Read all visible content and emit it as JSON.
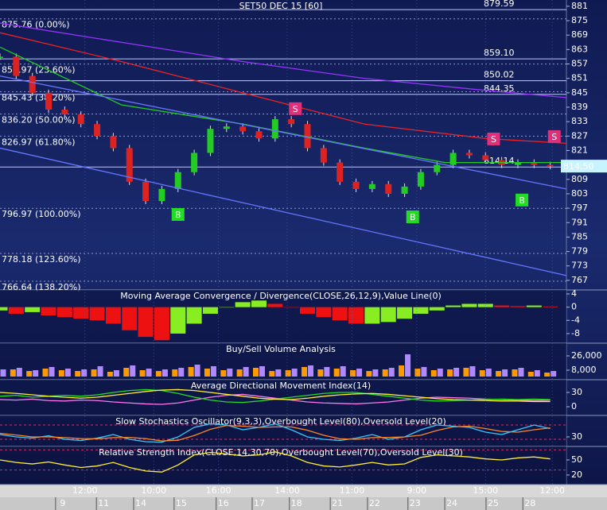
{
  "chart_data": [
    {
      "type": "line",
      "title": "SET50 DEC 15 [60]",
      "xlim": [
        0,
        140
      ],
      "ylim": [
        763,
        883.6
      ],
      "yticks": [
        881,
        875,
        869,
        863,
        857,
        851,
        845,
        839,
        833,
        827,
        821,
        815,
        809,
        803,
        797,
        791,
        785,
        779,
        773,
        767
      ],
      "series": [
        {
          "style": "candle",
          "color": "#22cc22",
          "down_color": "#dd2222",
          "x": [
            0,
            4,
            8,
            12,
            16,
            20,
            24,
            28,
            32,
            36,
            40,
            44,
            48,
            52,
            56,
            60,
            64,
            68,
            72,
            76,
            80,
            84,
            88,
            92,
            96,
            100,
            104,
            108,
            112,
            116,
            120,
            124,
            128,
            132,
            136
          ],
          "values": [
            860,
            852,
            845,
            838,
            836,
            832,
            827,
            822,
            808,
            800,
            805,
            812,
            820,
            830,
            831,
            829,
            826,
            834,
            832,
            822,
            816,
            808,
            805,
            807,
            803,
            806,
            812,
            815,
            820,
            819,
            817,
            815,
            816,
            815,
            814.5
          ]
        },
        {
          "style": "line",
          "color": "#9933ff",
          "x": [
            0,
            30,
            60,
            90,
            120,
            140
          ],
          "values": [
            874,
            866,
            858,
            851,
            846,
            843
          ]
        },
        {
          "style": "line",
          "color": "#ee2222",
          "x": [
            0,
            30,
            60,
            90,
            120,
            140
          ],
          "values": [
            870,
            858,
            845,
            832,
            826,
            824
          ]
        },
        {
          "style": "line",
          "color": "#22cc22",
          "x": [
            0,
            30,
            60,
            90,
            110,
            140
          ],
          "values": [
            864,
            840,
            832,
            822,
            816,
            816
          ]
        },
        {
          "style": "line",
          "color": "#6677ff",
          "x": [
            0,
            140
          ],
          "values": [
            852,
            805
          ]
        },
        {
          "style": "line",
          "color": "#6677ff",
          "x": [
            0,
            140
          ],
          "values": [
            822,
            769
          ]
        }
      ],
      "fib_levels": [
        {
          "value": 875.76,
          "label": "875.76 (0.00%)"
        },
        {
          "value": 856.97,
          "label": "856.97 (23.60%)"
        },
        {
          "value": 845.43,
          "label": "845.43 (38.20%)"
        },
        {
          "value": 836.2,
          "label": "836.20 (50.00%)"
        },
        {
          "value": 826.97,
          "label": "826.97 (61.80%)"
        },
        {
          "value": 796.97,
          "label": "796.97 (100.00%)"
        },
        {
          "value": 778.18,
          "label": "778.18 (123.60%)"
        },
        {
          "value": 766.64,
          "label": "766.64 (138.20%)"
        }
      ],
      "price_levels": [
        879.59,
        {
          "value": 859.1,
          "label": "859.10"
        },
        850.02,
        844.35,
        814.14
      ],
      "last": {
        "value": 814.5,
        "label": "814.50"
      },
      "signals": [
        {
          "label": "S",
          "x": 73,
          "value": 838.4
        },
        {
          "label": "S",
          "x": 122,
          "value": 825.8
        },
        {
          "label": "S",
          "x": 137,
          "value": 826.8
        },
        {
          "label": "B",
          "x": 44,
          "value": 794.4
        },
        {
          "label": "B",
          "x": 102,
          "value": 793.4
        },
        {
          "label": "B",
          "x": 129,
          "value": 800.4
        }
      ]
    },
    {
      "type": "bar",
      "title": "Moving Average Convergence / Divergence(CLOSE,26,12,9),Value Line(0)",
      "xlim": [
        0,
        140
      ],
      "ylim": [
        -10.9,
        5.2
      ],
      "yticks": [
        4,
        0,
        -4,
        -8
      ],
      "x": [
        0,
        4,
        8,
        12,
        16,
        20,
        24,
        28,
        32,
        36,
        40,
        44,
        48,
        52,
        56,
        60,
        64,
        68,
        72,
        76,
        80,
        84,
        88,
        92,
        96,
        100,
        104,
        108,
        112,
        116,
        120,
        124,
        128,
        132,
        136
      ],
      "series": [
        {
          "style": "bar",
          "color": "#88ee22",
          "down_color": "#ee1111",
          "values": [
            -1,
            -2,
            -1.5,
            -2.5,
            -3,
            -3.5,
            -4,
            -5,
            -7,
            -9,
            -10,
            -8,
            -5,
            -2,
            0,
            1.5,
            2,
            1,
            0,
            -2,
            -3,
            -4,
            -5,
            -5,
            -4.5,
            -3.5,
            -2,
            -1,
            0.5,
            1,
            1,
            0.5,
            0.3,
            0.5,
            0.2
          ]
        }
      ]
    },
    {
      "type": "bar",
      "title": "Buy/Sell Volume Analysis",
      "xlim": [
        0,
        140
      ],
      "ylim": [
        -4000,
        42000
      ],
      "yticks": [
        {
          "value": 26000,
          "label": "26,000"
        },
        {
          "value": 8000,
          "label": "8,000"
        }
      ],
      "x": [
        0,
        4,
        8,
        12,
        16,
        20,
        24,
        28,
        32,
        36,
        40,
        44,
        48,
        52,
        56,
        60,
        64,
        68,
        72,
        76,
        80,
        84,
        88,
        92,
        96,
        100,
        104,
        108,
        112,
        116,
        120,
        124,
        128,
        132,
        136
      ],
      "series": [
        {
          "style": "bar",
          "color": "#ff9900",
          "values": [
            6000,
            9000,
            7000,
            10000,
            8000,
            7000,
            9000,
            6000,
            11000,
            8000,
            7000,
            9000,
            12000,
            10000,
            8000,
            9000,
            11000,
            7000,
            8000,
            12000,
            9000,
            10000,
            8000,
            7000,
            9000,
            14000,
            10000,
            8000,
            9000,
            11000,
            8000,
            7000,
            9000,
            6000,
            5000
          ]
        },
        {
          "style": "bar",
          "color": "#b088ff",
          "values": [
            9000,
            11000,
            8000,
            12000,
            10000,
            9000,
            13000,
            8000,
            14000,
            10000,
            9000,
            11000,
            15000,
            13000,
            10000,
            12000,
            13000,
            9000,
            10000,
            14000,
            12000,
            13000,
            10000,
            9000,
            11000,
            28000,
            12000,
            10000,
            11000,
            13000,
            10000,
            9000,
            11000,
            8000,
            7000
          ]
        }
      ]
    },
    {
      "type": "line",
      "title": "Average Directional Movement Index(14)",
      "xlim": [
        0,
        140
      ],
      "ylim": [
        -18.3,
        56.7
      ],
      "yticks": [
        30,
        0
      ],
      "x": [
        0,
        4,
        8,
        12,
        16,
        20,
        24,
        28,
        32,
        36,
        40,
        44,
        48,
        52,
        56,
        60,
        64,
        68,
        72,
        76,
        80,
        84,
        88,
        92,
        96,
        100,
        104,
        108,
        112,
        116,
        120,
        124,
        128,
        132,
        136
      ],
      "series": [
        {
          "style": "line",
          "color": "#ff77ee",
          "values": [
            15,
            14,
            16,
            13,
            12,
            14,
            13,
            10,
            8,
            6,
            5,
            8,
            14,
            20,
            24,
            26,
            22,
            18,
            14,
            10,
            8,
            7,
            6,
            8,
            10,
            14,
            18,
            20,
            19,
            18,
            16,
            15,
            14,
            13,
            14
          ]
        },
        {
          "style": "line",
          "color": "#22dd22",
          "values": [
            22,
            24,
            20,
            22,
            24,
            22,
            25,
            30,
            34,
            36,
            34,
            28,
            20,
            14,
            10,
            9,
            12,
            16,
            20,
            24,
            28,
            30,
            30,
            26,
            22,
            18,
            14,
            12,
            13,
            14,
            15,
            16,
            15,
            16,
            15
          ]
        },
        {
          "style": "line",
          "color": "#ffee33",
          "values": [
            30,
            28,
            25,
            22,
            20,
            18,
            20,
            24,
            28,
            32,
            35,
            36,
            34,
            30,
            26,
            22,
            18,
            16,
            15,
            18,
            22,
            25,
            27,
            28,
            26,
            23,
            20,
            17,
            15,
            14,
            13,
            12,
            12,
            11,
            11
          ]
        }
      ]
    },
    {
      "type": "line",
      "title": "Slow Stochastics Oscillator(9,3,3),Overbought Level(80),Oversold Level(20)",
      "xlim": [
        0,
        140
      ],
      "ylim": [
        -10,
        120
      ],
      "yticks": [
        30
      ],
      "levels": [
        80,
        20
      ],
      "x": [
        0,
        4,
        8,
        12,
        16,
        20,
        24,
        28,
        32,
        36,
        40,
        44,
        48,
        52,
        56,
        60,
        64,
        68,
        72,
        76,
        80,
        84,
        88,
        92,
        96,
        100,
        104,
        108,
        112,
        116,
        120,
        124,
        128,
        132,
        136
      ],
      "series": [
        {
          "style": "line",
          "color": "#33ccff",
          "values": [
            40,
            30,
            25,
            35,
            20,
            15,
            25,
            40,
            20,
            10,
            8,
            30,
            70,
            85,
            80,
            60,
            70,
            85,
            60,
            30,
            20,
            15,
            25,
            40,
            20,
            30,
            60,
            80,
            75,
            70,
            50,
            40,
            60,
            80,
            65
          ]
        },
        {
          "style": "line",
          "color": "#ff8822",
          "values": [
            45,
            38,
            30,
            30,
            27,
            23,
            22,
            27,
            28,
            23,
            13,
            16,
            36,
            62,
            78,
            75,
            70,
            72,
            72,
            58,
            37,
            22,
            20,
            27,
            28,
            30,
            37,
            57,
            72,
            75,
            65,
            53,
            50,
            60,
            68
          ]
        }
      ]
    },
    {
      "type": "line",
      "title": "Relative Strength Index(CLOSE,14,30,70),Overbought Level(70),Oversold Level(30)",
      "xlim": [
        0,
        140
      ],
      "ylim": [
        1,
        76.8
      ],
      "yticks": [
        50,
        20
      ],
      "levels": [
        70,
        30
      ],
      "x": [
        0,
        4,
        8,
        12,
        16,
        20,
        24,
        28,
        32,
        36,
        40,
        44,
        48,
        52,
        56,
        60,
        64,
        68,
        72,
        76,
        80,
        84,
        88,
        92,
        96,
        100,
        104,
        108,
        112,
        116,
        120,
        124,
        128,
        132,
        136
      ],
      "series": [
        {
          "style": "line",
          "color": "#ffee33",
          "values": [
            50,
            45,
            42,
            46,
            40,
            35,
            38,
            45,
            35,
            28,
            26,
            40,
            60,
            65,
            62,
            58,
            60,
            66,
            58,
            45,
            38,
            36,
            40,
            45,
            40,
            42,
            55,
            60,
            58,
            56,
            52,
            50,
            54,
            56,
            52
          ]
        }
      ],
      "xticks": [
        {
          "value": 21,
          "label": "12:00"
        },
        {
          "value": 38,
          "label": "10:00"
        },
        {
          "value": 54,
          "label": "16:00"
        },
        {
          "value": 71,
          "label": "14:00"
        },
        {
          "value": 87,
          "label": "11:00"
        },
        {
          "value": 103,
          "label": "9:00"
        },
        {
          "value": 120,
          "label": "15:00"
        },
        {
          "value": 136.5,
          "label": "12:00"
        }
      ],
      "day_ticks": [
        {
          "value": 15.5,
          "label": "9"
        },
        {
          "value": 25.6,
          "label": "11"
        },
        {
          "value": 34.8,
          "label": "14"
        },
        {
          "value": 44.8,
          "label": "15"
        },
        {
          "value": 55.2,
          "label": "16"
        },
        {
          "value": 64.1,
          "label": "17"
        },
        {
          "value": 73.3,
          "label": "18"
        },
        {
          "value": 83.4,
          "label": "21"
        },
        {
          "value": 92.6,
          "label": "22"
        },
        {
          "value": 102.6,
          "label": "23"
        },
        {
          "value": 111.7,
          "label": "24"
        },
        {
          "value": 121.9,
          "label": "25"
        },
        {
          "value": 131,
          "label": "28"
        }
      ]
    }
  ]
}
